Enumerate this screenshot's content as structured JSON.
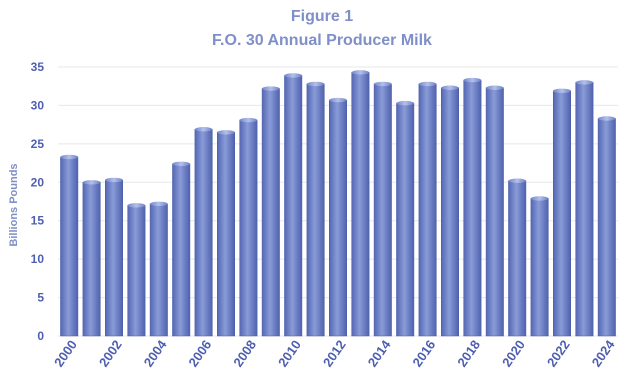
{
  "chart_data": {
    "type": "bar",
    "title": "Figure 1",
    "subtitle": "F.O. 30 Annual Producer Milk",
    "xlabel": "",
    "ylabel": "Billions Pounds",
    "ylim": [
      0,
      35
    ],
    "yticks": [
      "0",
      "5",
      "10",
      "15",
      "20",
      "25",
      "30",
      "35"
    ],
    "grid": true,
    "legend": "none",
    "bar_color": "#6f82c8",
    "categories": [
      "2000",
      "2001",
      "2002",
      "2003",
      "2004",
      "2005",
      "2006",
      "2007",
      "2008",
      "2009",
      "2010",
      "2011",
      "2012",
      "2013",
      "2014",
      "2015",
      "2016",
      "2017",
      "2018",
      "2019",
      "2020",
      "2021",
      "2022",
      "2023",
      "2024"
    ],
    "x_tick_labels": [
      "2000",
      "",
      "2002",
      "",
      "2004",
      "",
      "2006",
      "",
      "2008",
      "",
      "2010",
      "",
      "2012",
      "",
      "2014",
      "",
      "2016",
      "",
      "2018",
      "",
      "2020",
      "",
      "2022",
      "",
      "2024"
    ],
    "values": [
      23.3,
      20.0,
      20.3,
      17.0,
      17.2,
      22.4,
      26.9,
      26.5,
      28.1,
      32.2,
      33.9,
      32.8,
      30.7,
      34.3,
      32.8,
      30.3,
      32.8,
      32.3,
      33.3,
      32.3,
      20.2,
      17.9,
      31.9,
      33.0,
      28.3
    ]
  }
}
